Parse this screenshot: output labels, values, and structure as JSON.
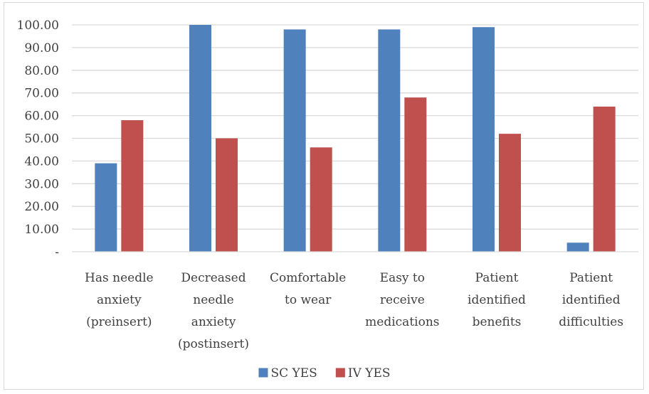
{
  "chart_data": {
    "type": "bar",
    "categories": [
      [
        "Has needle",
        "anxiety",
        "(preinsert)"
      ],
      [
        "Decreased",
        "needle",
        "anxiety",
        "(postinsert)"
      ],
      [
        "Comfortable",
        "to wear"
      ],
      [
        "Easy to",
        "receive",
        "medications"
      ],
      [
        "Patient",
        "identified",
        "benefits"
      ],
      [
        "Patient",
        "identified",
        "difficulties"
      ]
    ],
    "series": [
      {
        "name": "SC YES",
        "color": "#4f81bd",
        "values": [
          39,
          100,
          98,
          98,
          99,
          4
        ]
      },
      {
        "name": "IV YES",
        "color": "#c0504d",
        "values": [
          58,
          50,
          46,
          68,
          52,
          64
        ]
      }
    ],
    "ylim": [
      0,
      100
    ],
    "yticks": [
      {
        "value": 0,
        "label": "-"
      },
      {
        "value": 10,
        "label": "10.00"
      },
      {
        "value": 20,
        "label": "20.00"
      },
      {
        "value": 30,
        "label": "30.00"
      },
      {
        "value": 40,
        "label": "40.00"
      },
      {
        "value": 50,
        "label": "50.00"
      },
      {
        "value": 60,
        "label": "60.00"
      },
      {
        "value": 70,
        "label": "70.00"
      },
      {
        "value": 80,
        "label": "80.00"
      },
      {
        "value": 90,
        "label": "90.00"
      },
      {
        "value": 100,
        "label": "100.00"
      }
    ],
    "grid": true,
    "legend_position": "bottom",
    "gridline_color": "#d9d9d9",
    "axis_color": "#d9d9d9"
  }
}
